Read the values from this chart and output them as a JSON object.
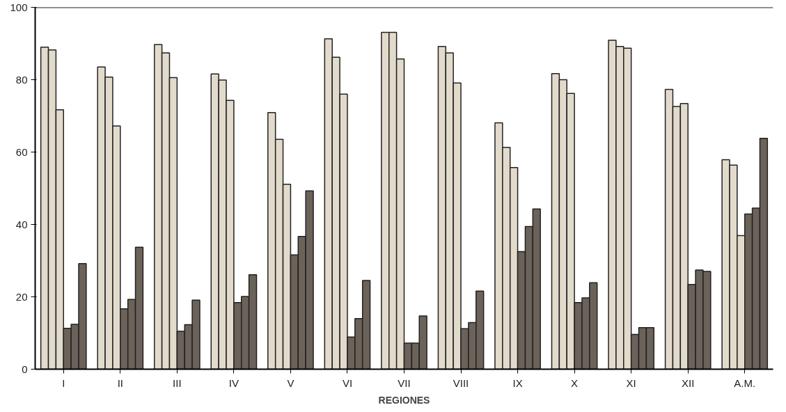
{
  "chart_data": {
    "type": "bar",
    "xlabel": "REGIONES",
    "categories": [
      "I",
      "II",
      "III",
      "IV",
      "V",
      "VI",
      "VII",
      "VIII",
      "IX",
      "X",
      "XI",
      "XII",
      "A.M."
    ],
    "series": [
      {
        "color": "#e2dbcc",
        "values": [
          89,
          83.5,
          89.7,
          81.6,
          70.9,
          91.3,
          93.1,
          89.2,
          68.1,
          81.7,
          90.9,
          77.3,
          57.9
        ]
      },
      {
        "color": "#e2dbcc",
        "values": [
          88.2,
          80.7,
          87.4,
          79.9,
          63.5,
          86.2,
          93.1,
          87.4,
          61.3,
          80,
          89.2,
          72.6,
          56.4
        ]
      },
      {
        "color": "#e2dbcc",
        "values": [
          71.7,
          67.2,
          80.6,
          74.3,
          51.1,
          76,
          85.7,
          79.1,
          55.7,
          76.2,
          88.7,
          73.4,
          36.9
        ]
      },
      {
        "color": "#6b625a",
        "values": [
          11.3,
          16.7,
          10.5,
          18.4,
          31.6,
          8.9,
          7.2,
          11.2,
          32.5,
          18.4,
          9.6,
          23.4,
          42.9
        ]
      },
      {
        "color": "#6b625a",
        "values": [
          12.4,
          19.3,
          12.3,
          20.1,
          36.7,
          14,
          7.2,
          12.9,
          39.4,
          19.7,
          11.5,
          27.4,
          44.5
        ]
      },
      {
        "color": "#6b625a",
        "values": [
          29.2,
          33.7,
          19.1,
          26.1,
          49.3,
          24.5,
          14.7,
          21.6,
          44.3,
          23.9,
          11.5,
          27,
          63.8
        ]
      }
    ],
    "ylim": [
      0,
      100
    ],
    "yticks": [
      0,
      20,
      40,
      60,
      80,
      100
    ],
    "grid": false
  }
}
